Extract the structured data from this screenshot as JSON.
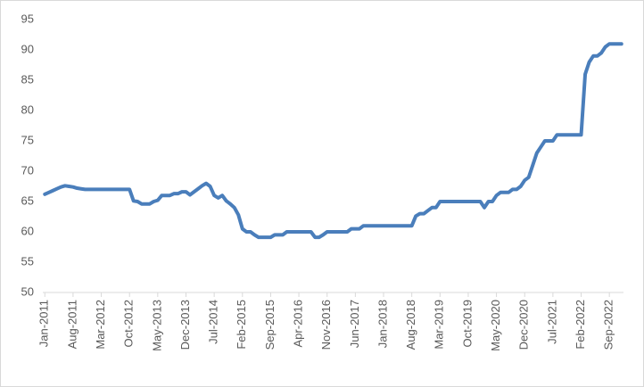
{
  "chart_data": {
    "type": "line",
    "categories": [
      "Jan-2011",
      null,
      null,
      null,
      null,
      null,
      null,
      "Aug-2011",
      null,
      null,
      null,
      null,
      null,
      null,
      "Mar-2012",
      null,
      null,
      null,
      null,
      null,
      null,
      "Oct-2012",
      null,
      null,
      null,
      null,
      null,
      null,
      "May-2013",
      null,
      null,
      null,
      null,
      null,
      null,
      "Dec-2013",
      null,
      null,
      null,
      null,
      null,
      null,
      "Jul-2014",
      null,
      null,
      null,
      null,
      null,
      null,
      "Feb-2015",
      null,
      null,
      null,
      null,
      null,
      null,
      "Sep-2015",
      null,
      null,
      null,
      null,
      null,
      null,
      "Apr-2016",
      null,
      null,
      null,
      null,
      null,
      null,
      "Nov-2016",
      null,
      null,
      null,
      null,
      null,
      null,
      "Jun-2017",
      null,
      null,
      null,
      null,
      null,
      null,
      "Jan-2018",
      null,
      null,
      null,
      null,
      null,
      null,
      "Aug-2018",
      null,
      null,
      null,
      null,
      null,
      null,
      "Mar-2019",
      null,
      null,
      null,
      null,
      null,
      null,
      "Oct-2019",
      null,
      null,
      null,
      null,
      null,
      null,
      "May-2020",
      null,
      null,
      null,
      null,
      null,
      null,
      "Dec-2020",
      null,
      null,
      null,
      null,
      null,
      null,
      "Jul-2021",
      null,
      null,
      null,
      null,
      null,
      null,
      "Feb-2022",
      null,
      null,
      null,
      null,
      null,
      null,
      "Sep-2022",
      null,
      null,
      null
    ],
    "values": [
      66.2,
      66.5,
      66.8,
      67.1,
      67.4,
      67.6,
      67.5,
      67.4,
      67.2,
      67.1,
      67,
      67,
      67,
      67,
      67,
      67,
      67,
      67,
      67,
      67,
      67,
      67,
      65.1,
      65,
      64.6,
      64.6,
      64.6,
      65,
      65.2,
      66,
      66,
      66,
      66.3,
      66.3,
      66.6,
      66.6,
      66.1,
      66.6,
      67.1,
      67.6,
      68,
      67.5,
      66,
      65.6,
      66,
      65.1,
      64.6,
      64,
      62.8,
      60.5,
      60,
      60,
      59.5,
      59.1,
      59.1,
      59.1,
      59.1,
      59.5,
      59.5,
      59.5,
      60,
      60,
      60,
      60,
      60,
      60,
      60,
      59.1,
      59.1,
      59.5,
      60,
      60,
      60,
      60,
      60,
      60,
      60.5,
      60.5,
      60.5,
      61,
      61,
      61,
      61,
      61,
      61,
      61,
      61,
      61,
      61,
      61,
      61,
      61,
      62.6,
      63,
      63,
      63.5,
      64,
      64,
      65,
      65,
      65,
      65,
      65,
      65,
      65,
      65,
      65,
      65,
      65,
      64,
      65,
      65,
      66,
      66.5,
      66.5,
      66.5,
      67,
      67,
      67.5,
      68.5,
      69,
      71,
      73,
      74,
      75,
      75,
      75,
      76,
      76,
      76,
      76,
      76,
      76,
      76,
      86,
      88,
      89,
      89,
      89.5,
      90.5,
      91,
      91,
      91,
      91
    ],
    "color": "#4a7ebb",
    "ylim": [
      50,
      95
    ],
    "yticks": [
      50,
      55,
      60,
      65,
      70,
      75,
      80,
      85,
      90,
      95
    ]
  }
}
